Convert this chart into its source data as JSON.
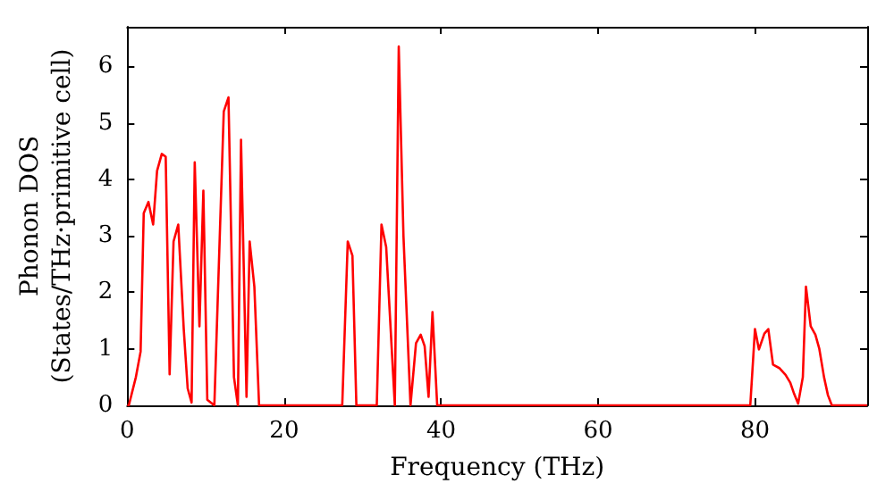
{
  "chart_data": {
    "type": "line",
    "xlabel": "Frequency (THz)",
    "ylabel": "Phonon DOS\n(States/THz·primitive cell)",
    "xlim": [
      0,
      94.3
    ],
    "ylim": [
      0,
      6.7
    ],
    "xticks": [
      0,
      20,
      40,
      60,
      80
    ],
    "yticks": [
      0,
      1,
      2,
      3,
      4,
      5,
      6
    ],
    "grid": false,
    "marker": "none",
    "line_style": "solid",
    "series": [
      {
        "color": "#ff0000",
        "x": [
          0,
          0.2,
          1.1,
          1.7,
          2.1,
          2.7,
          3.3,
          3.8,
          4.4,
          4.9,
          5.4,
          5.9,
          6.5,
          7.2,
          7.7,
          8.2,
          8.6,
          9.2,
          9.7,
          10.2,
          11.1,
          12.3,
          12.9,
          13.6,
          14.1,
          14.5,
          15.2,
          15.6,
          16.2,
          16.8,
          27.4,
          28.1,
          28.7,
          29.2,
          31.8,
          32.4,
          33.0,
          34.1,
          34.6,
          35.2,
          36.1,
          36.8,
          37.4,
          37.9,
          38.4,
          38.9,
          39.5,
          79.4,
          80.0,
          80.5,
          81.2,
          81.7,
          82.3,
          83.1,
          83.9,
          84.5,
          85.0,
          85.5,
          86.1,
          86.5,
          87.1,
          87.7,
          88.2,
          88.8,
          89.3,
          89.8,
          94.3
        ],
        "values": [
          0,
          0,
          0.5,
          0.95,
          3.4,
          3.6,
          3.2,
          4.15,
          4.45,
          4.4,
          0.55,
          2.9,
          3.2,
          1.35,
          0.3,
          0.05,
          4.3,
          1.4,
          3.8,
          0.1,
          0,
          5.2,
          5.45,
          0.5,
          0,
          4.7,
          0.15,
          2.9,
          2.1,
          0,
          0,
          2.9,
          2.65,
          0,
          0,
          3.2,
          2.8,
          0,
          6.35,
          3.0,
          0,
          1.1,
          1.25,
          1.05,
          0.15,
          1.65,
          0,
          0,
          1.35,
          0.99,
          1.27,
          1.35,
          0.72,
          0.66,
          0.54,
          0.4,
          0.2,
          0.03,
          0.5,
          2.1,
          1.4,
          1.25,
          1.0,
          0.5,
          0.18,
          0,
          0
        ]
      }
    ]
  }
}
